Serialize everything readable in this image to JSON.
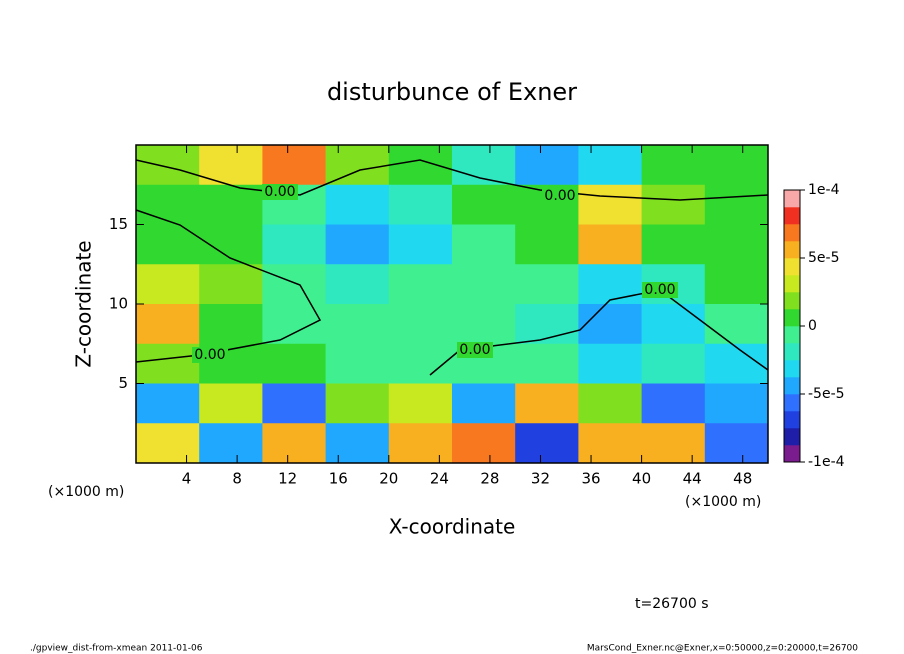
{
  "chart_data": {
    "type": "contour",
    "title": "disturbunce of Exner",
    "xlabel": "X-coordinate",
    "ylabel": "Z-coordinate",
    "xunit": "(×1000 m)",
    "xlim": [
      0,
      50
    ],
    "ylim": [
      0,
      20
    ],
    "xticks": [
      4,
      8,
      12,
      16,
      20,
      24,
      28,
      32,
      36,
      40,
      44,
      48
    ],
    "yticks": [
      5,
      10,
      15
    ],
    "z": [
      [
        2e-05,
        4e-05,
        7e-05,
        2e-05,
        0,
        -2e-05,
        -4e-05,
        -3e-05,
        0,
        1e-05
      ],
      [
        1e-05,
        0,
        -1e-05,
        -3e-05,
        -2e-05,
        0,
        1e-05,
        4e-05,
        2e-05,
        1e-05
      ],
      [
        1e-05,
        0,
        -2e-05,
        -4e-05,
        -3e-05,
        -1e-05,
        0,
        5e-05,
        1e-05,
        0
      ],
      [
        3e-05,
        2e-05,
        -1e-05,
        -2e-05,
        -1e-05,
        -1e-05,
        -1e-05,
        -3e-05,
        -2e-05,
        0
      ],
      [
        5e-05,
        1e-05,
        -1e-05,
        -1e-05,
        -1e-05,
        -1e-05,
        -2e-05,
        -4e-05,
        -3e-05,
        -1e-05
      ],
      [
        2e-05,
        0,
        1e-05,
        -1e-05,
        -1e-05,
        -1e-05,
        -1e-05,
        -3e-05,
        -2e-05,
        -3e-05
      ],
      [
        -5e-05,
        3e-05,
        -6e-05,
        2e-05,
        3e-05,
        -5e-05,
        5e-05,
        2e-05,
        -6e-05,
        -5e-05
      ],
      [
        4e-05,
        -5e-05,
        6e-05,
        -4e-05,
        5e-05,
        7e-05,
        -7e-05,
        6e-05,
        5e-05,
        -6e-05
      ]
    ],
    "clim": [
      -0.0001,
      0.0001
    ],
    "colors": [
      "#7a1c8e",
      "#1e1ea8",
      "#2040e0",
      "#3070ff",
      "#20a8ff",
      "#20d8f0",
      "#30e8c0",
      "#40f090",
      "#30d830",
      "#80e020",
      "#c8e820",
      "#f0e030",
      "#f8b020",
      "#f87820",
      "#f03020",
      "#f8a8a8"
    ],
    "cticks": [
      {
        "value": 0.0001,
        "label": "1e-4"
      },
      {
        "value": 5e-05,
        "label": "5e-5"
      },
      0,
      {
        "value": -5e-05,
        "label": "-5e-5"
      },
      {
        "value": -0.0001,
        "label": "-1e-4"
      }
    ],
    "contour_labels": [
      "0.00",
      "0.00",
      "0.00",
      "0.00",
      "0.00"
    ],
    "time_label": "t=26700 s",
    "footer_left": "./gpview_dist-from-xmean  2011-01-06",
    "footer_right": "MarsCond_Exner.nc@Exner,x=0:50000,z=0:20000,t=26700"
  }
}
